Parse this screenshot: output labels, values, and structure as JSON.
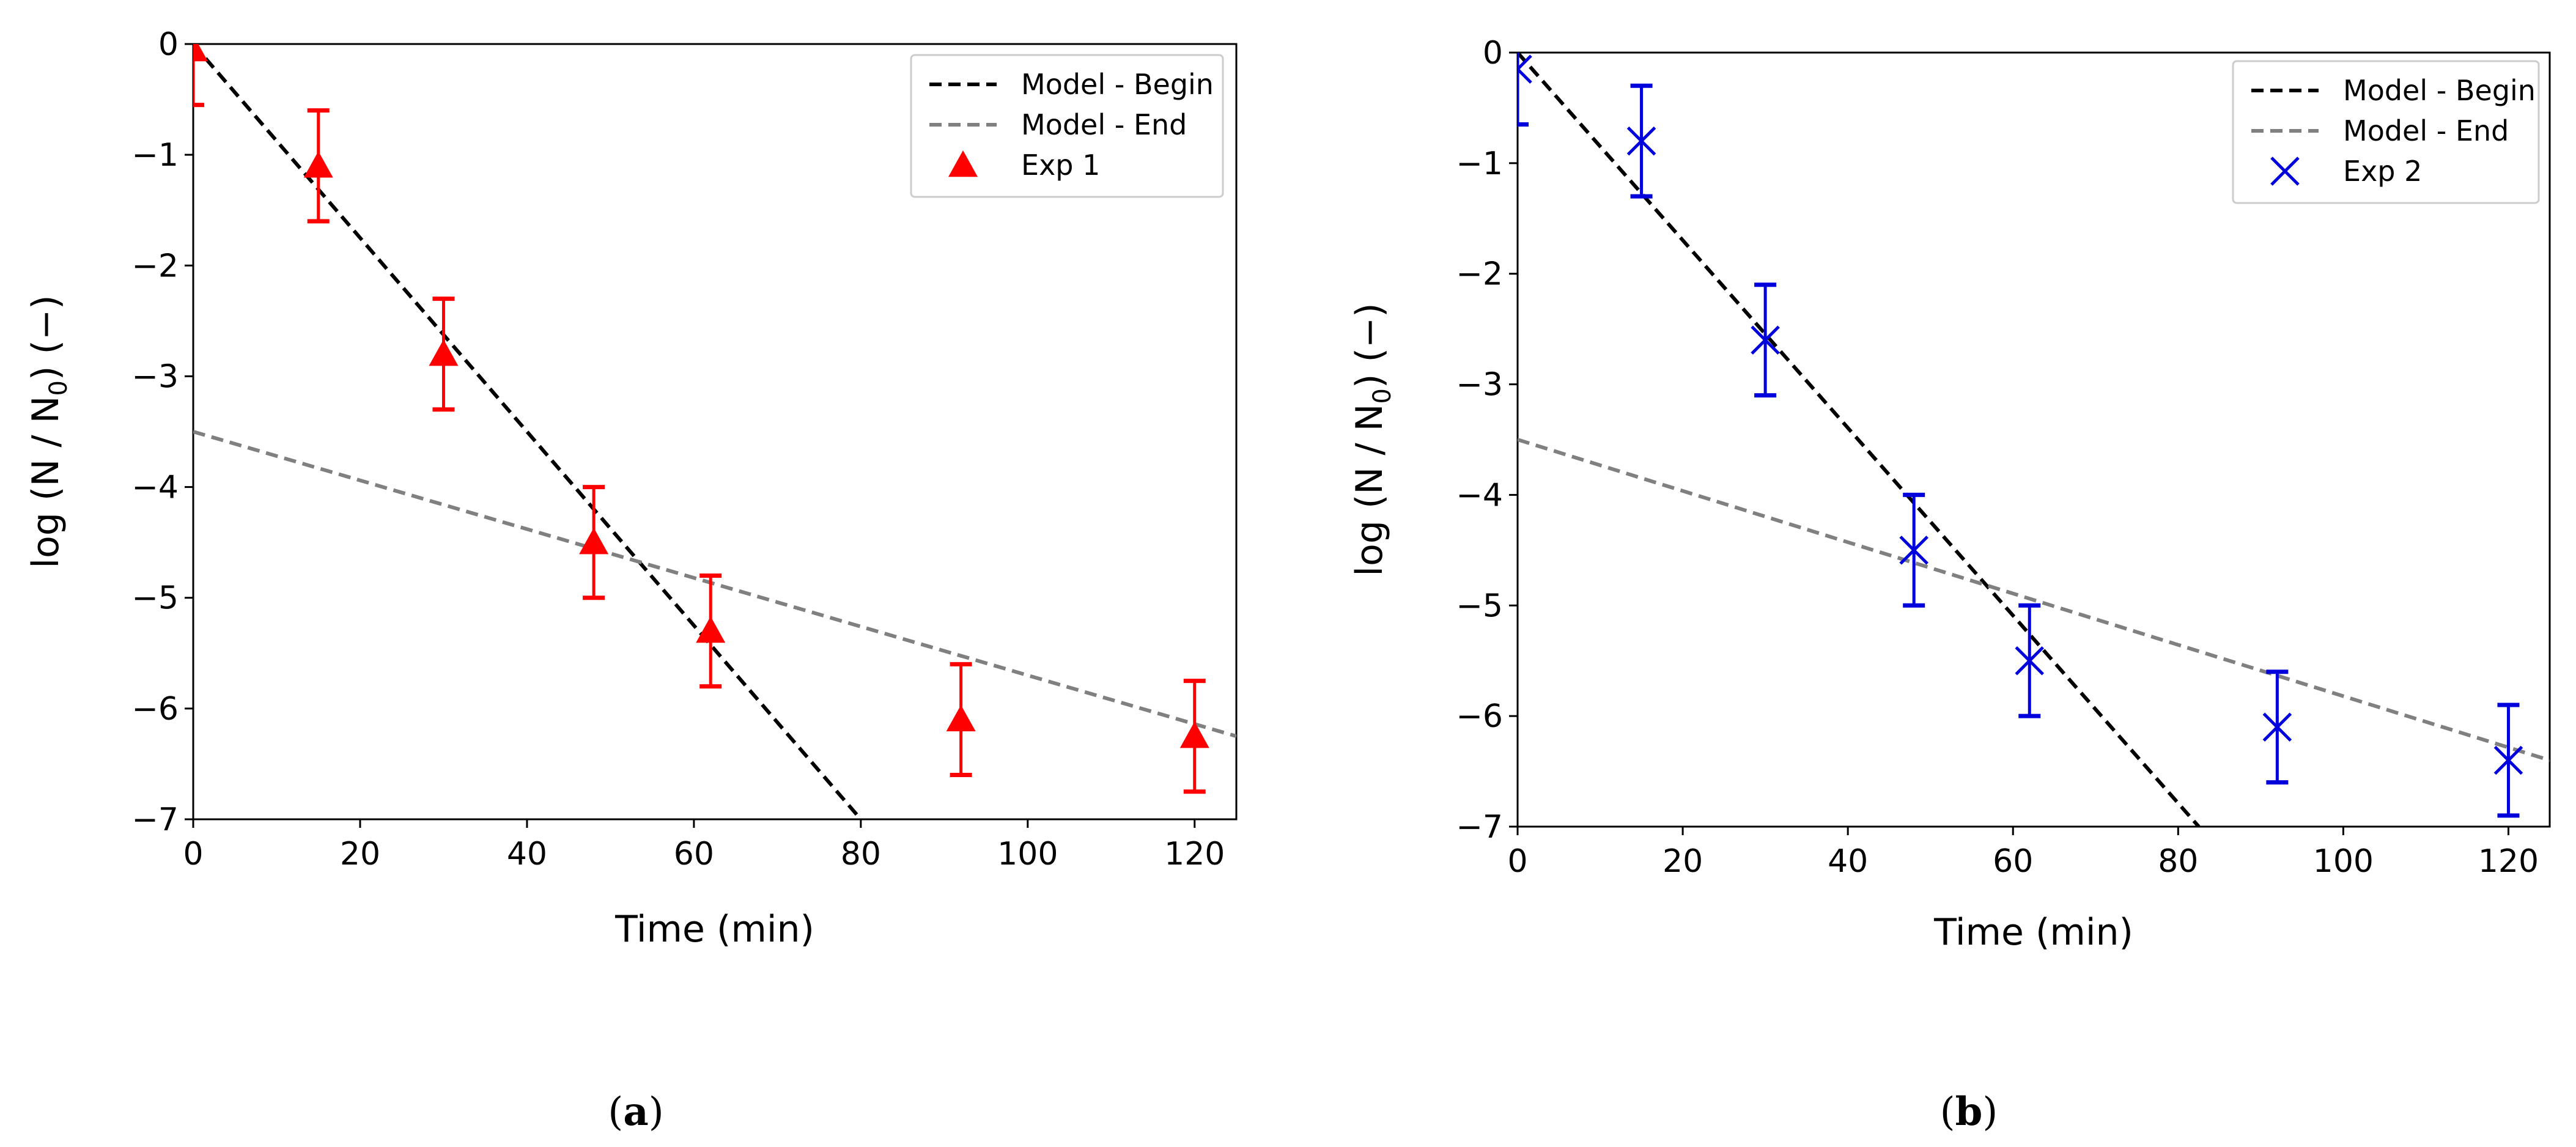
{
  "figure": {
    "panels": [
      "(a)",
      "(b)"
    ]
  },
  "chart_data": [
    {
      "type": "scatter",
      "panel_label": "(a)",
      "title": "",
      "xlabel": "Time (min)",
      "ylabel": "log (N / N0) (−)",
      "xlim": [
        0,
        125
      ],
      "ylim": [
        -7,
        0
      ],
      "xticks": [
        "0",
        "20",
        "40",
        "60",
        "80",
        "100",
        "120"
      ],
      "yticks": [
        "0",
        "−1",
        "−2",
        "−3",
        "−4",
        "−5",
        "−6",
        "−7"
      ],
      "series": [
        {
          "name": "Model - Begin",
          "kind": "line",
          "style": "dashed",
          "color": "#000000",
          "points": [
            [
              0,
              0
            ],
            [
              80,
              -7
            ]
          ]
        },
        {
          "name": "Model - End",
          "kind": "line",
          "style": "dashed",
          "color": "#808080",
          "points": [
            [
              0,
              -3.5
            ],
            [
              125,
              -6.25
            ]
          ]
        },
        {
          "name": "Exp 1",
          "kind": "marker",
          "marker": "triangle",
          "color": "#ff0000",
          "x": [
            0,
            15,
            30,
            48,
            62,
            92,
            120
          ],
          "y": [
            -0.05,
            -1.1,
            -2.8,
            -4.5,
            -5.3,
            -6.1,
            -6.25
          ],
          "err": [
            0.5,
            0.5,
            0.5,
            0.5,
            0.5,
            0.5,
            0.5
          ]
        }
      ],
      "legend": [
        "Model - Begin",
        "Model - End",
        "Exp 1"
      ],
      "legend_position": "top-right"
    },
    {
      "type": "scatter",
      "panel_label": "(b)",
      "title": "",
      "xlabel": "Time (min)",
      "ylabel": "log (N / N0) (−)",
      "xlim": [
        0,
        125
      ],
      "ylim": [
        -7,
        0
      ],
      "xticks": [
        "0",
        "20",
        "40",
        "60",
        "80",
        "100",
        "120"
      ],
      "yticks": [
        "0",
        "−1",
        "−2",
        "−3",
        "−4",
        "−5",
        "−6",
        "−7"
      ],
      "series": [
        {
          "name": "Model - Begin",
          "kind": "line",
          "style": "dashed",
          "color": "#000000",
          "points": [
            [
              0,
              0
            ],
            [
              82.5,
              -7
            ]
          ]
        },
        {
          "name": "Model - End",
          "kind": "line",
          "style": "dashed",
          "color": "#808080",
          "points": [
            [
              0,
              -3.5
            ],
            [
              125,
              -6.4
            ]
          ]
        },
        {
          "name": "Exp 2",
          "kind": "marker",
          "marker": "x",
          "color": "#0000dd",
          "x": [
            0,
            15,
            30,
            48,
            62,
            92,
            120
          ],
          "y": [
            -0.15,
            -0.8,
            -2.6,
            -4.5,
            -5.5,
            -6.1,
            -6.4
          ],
          "err": [
            0.5,
            0.5,
            0.5,
            0.5,
            0.5,
            0.5,
            0.5
          ]
        }
      ],
      "legend": [
        "Model - Begin",
        "Model - End",
        "Exp 2"
      ],
      "legend_position": "top-right"
    }
  ]
}
